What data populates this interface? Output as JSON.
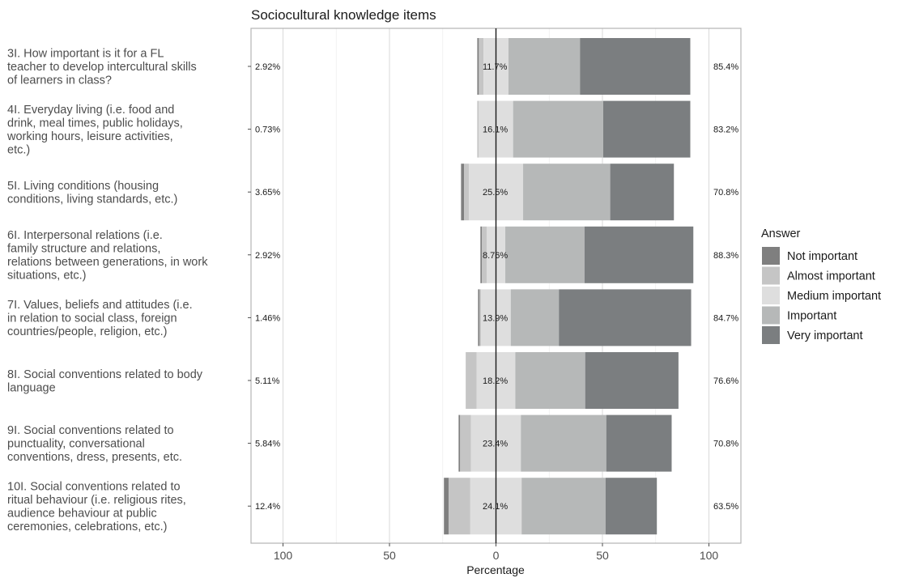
{
  "chart_data": {
    "type": "bar",
    "subtype": "diverging-stacked-likert",
    "title": "Sociocultural knowledge items",
    "xlabel": "Percentage",
    "ylabel": "",
    "xlim": [
      -115,
      115
    ],
    "x_ticks": [
      -100,
      -50,
      0,
      50,
      100
    ],
    "x_tick_labels": [
      "100",
      "50",
      "0",
      "50",
      "100"
    ],
    "grid": true,
    "legend": {
      "title": "Answer",
      "position": "right"
    },
    "series": [
      {
        "name": "Not important",
        "color": "#7f7f7f"
      },
      {
        "name": "Almost important",
        "color": "#c5c5c5"
      },
      {
        "name": "Medium important",
        "color": "#dedede"
      },
      {
        "name": "Important",
        "color": "#b6b8b8"
      },
      {
        "name": "Very important",
        "color": "#7b7e80"
      }
    ],
    "categories": [
      "3I. How important is it for a FL teacher to develop intercultural skills of learners in class?",
      "4I. Everyday living (i.e. food and drink, meal times, public holidays, working hours, leisure activities, etc.)",
      "5I. Living conditions (housing conditions, living standards, etc.)",
      "6I. Interpersonal relations (i.e. family structure and relations, relations between generations, in work situations, etc.)",
      "7I. Values, beliefs and attitudes (i.e. in relation to social class, foreign countries/people, religion, etc.)",
      "8I. Social conventions related to body language",
      "9I. Social conventions related to punctuality, conversational conventions, dress, presents, etc.",
      "10I. Social conventions related to ritual behaviour (i.e. religious rites, audience behaviour at public ceremonies, celebrations, etc.)"
    ],
    "category_lines": [
      [
        "3I. How important is it for a FL",
        "teacher to develop intercultural skills",
        "of learners in class?"
      ],
      [
        "4I. Everyday living (i.e. food and",
        "drink, meal times, public holidays,",
        "working hours, leisure activities,",
        "etc.)"
      ],
      [
        "5I. Living conditions (housing",
        "conditions, living standards, etc.)"
      ],
      [
        "6I. Interpersonal relations (i.e.",
        "family structure and relations,",
        "relations between generations, in work",
        "situations, etc.)"
      ],
      [
        "7I. Values, beliefs and attitudes (i.e.",
        "in relation to social class, foreign",
        "countries/people, religion, etc.)"
      ],
      [
        "8I. Social conventions related to body",
        "language"
      ],
      [
        "9I. Social conventions related to",
        "punctuality, conversational",
        "conventions, dress, presents, etc."
      ],
      [
        "10I. Social conventions related to",
        "ritual behaviour (i.e. religious rites,",
        "audience behaviour at public",
        "ceremonies, celebrations, etc.)"
      ]
    ],
    "values_pct": [
      [
        0.73,
        2.19,
        11.7,
        33.6,
        51.8
      ],
      [
        0.0,
        0.73,
        16.1,
        42.3,
        40.9
      ],
      [
        1.46,
        2.19,
        25.5,
        40.9,
        29.9
      ],
      [
        0.73,
        2.19,
        8.76,
        37.2,
        51.1
      ],
      [
        0.73,
        0.73,
        13.9,
        22.6,
        62.1
      ],
      [
        0.0,
        5.11,
        18.2,
        32.8,
        43.8
      ],
      [
        0.73,
        5.11,
        23.4,
        40.1,
        30.7
      ],
      [
        2.19,
        10.2,
        24.1,
        39.4,
        24.1
      ]
    ],
    "left_labels": [
      "2.92%",
      "0.73%",
      "3.65%",
      "2.92%",
      "1.46%",
      "5.11%",
      "5.84%",
      "12.4%"
    ],
    "mid_labels": [
      "11.7%",
      "16.1%",
      "25.5%",
      "8.76%",
      "13.9%",
      "18.2%",
      "23.4%",
      "24.1%"
    ],
    "right_labels": [
      "85.4%",
      "83.2%",
      "70.8%",
      "88.3%",
      "84.7%",
      "76.6%",
      "70.8%",
      "63.5%"
    ]
  }
}
